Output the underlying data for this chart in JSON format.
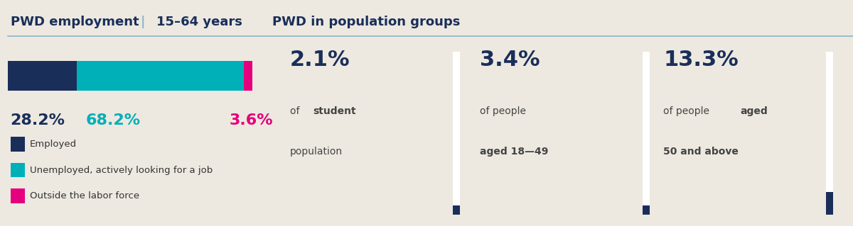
{
  "bg_color": "#ede9e0",
  "top_bar_color": "#00b5b8",
  "bottom_bar_color": "#00b5b8",
  "title_color": "#1a2e5a",
  "left_title": "PWD employment",
  "left_title_sep": "|",
  "left_subtitle": "15–64 years",
  "right_title": "PWD in population groups",
  "bar_values": [
    28.2,
    68.2,
    3.6
  ],
  "bar_colors": [
    "#1a2e5a",
    "#00b0b9",
    "#e5007d"
  ],
  "bar_labels": [
    "28.2%",
    "68.2%",
    "3.6%"
  ],
  "bar_label_colors": [
    "#1a2e5a",
    "#00b0b9",
    "#e5007d"
  ],
  "legend_items": [
    {
      "color": "#1a2e5a",
      "label": "Employed"
    },
    {
      "color": "#00b0b9",
      "label": "Unemployed, actively looking for a job"
    },
    {
      "color": "#e5007d",
      "label": "Outside the labor force"
    }
  ],
  "pop_groups": [
    {
      "pct": "2.1%",
      "line1": "of ",
      "bold1": "student",
      "line2": "population",
      "bold2": ""
    },
    {
      "pct": "3.4%",
      "line1": "of people",
      "bold1": "",
      "line2": "aged 18—49",
      "bold2": "aged 18—49"
    },
    {
      "pct": "13.3%",
      "line1": "of people ",
      "bold1": "aged",
      "line2": "50 and above",
      "bold2": "50 and above"
    }
  ],
  "divider_color": "#8ab4c8",
  "accent_bar_color": "#1a2e5a",
  "white_bar_color": "#ffffff",
  "teal_bottom": "#00b5b8"
}
